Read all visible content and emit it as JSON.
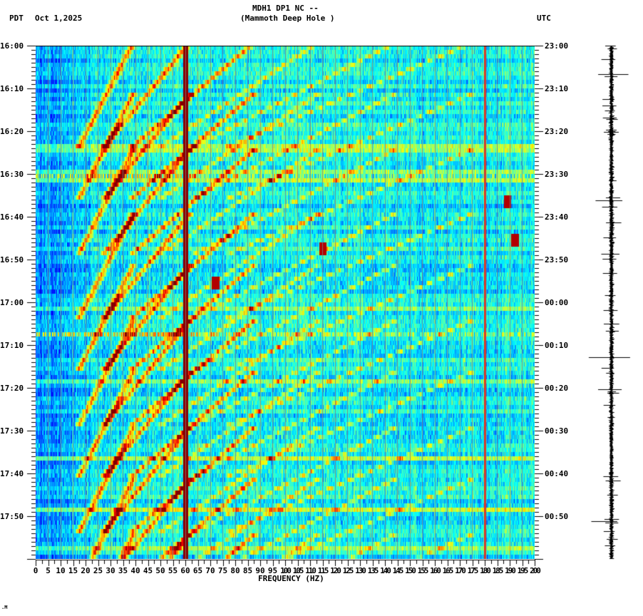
{
  "header": {
    "left_tz": "PDT",
    "date": "Oct 1,2025",
    "title_line1": "MDH1 DP1 NC --",
    "title_line2": "(Mammoth Deep Hole )",
    "right_tz": "UTC"
  },
  "footer_mark": ".M",
  "chart_data": {
    "type": "heatmap",
    "title": "MDH1 DP1 NC -- (Mammoth Deep Hole ) spectrogram",
    "xlabel": "FREQUENCY (HZ)",
    "ylabel_left": "PDT",
    "ylabel_right": "UTC",
    "xlim": [
      0,
      200
    ],
    "x_ticks": [
      "0",
      "5",
      "10",
      "15",
      "20",
      "25",
      "30",
      "35",
      "40",
      "45",
      "50",
      "55",
      "60",
      "65",
      "70",
      "75",
      "80",
      "85",
      "90",
      "95",
      "100",
      "105",
      "110",
      "115",
      "120",
      "125",
      "130",
      "135",
      "140",
      "145",
      "150",
      "155",
      "160",
      "165",
      "170",
      "175",
      "180",
      "185",
      "190",
      "195",
      "200"
    ],
    "y_ticks_left": [
      "16:00",
      "16:10",
      "16:20",
      "16:30",
      "16:40",
      "16:50",
      "17:00",
      "17:10",
      "17:20",
      "17:30",
      "17:40",
      "17:50"
    ],
    "y_ticks_right": [
      "23:00",
      "23:10",
      "23:20",
      "23:30",
      "23:40",
      "23:50",
      "00:00",
      "00:10",
      "00:20",
      "00:30",
      "00:40",
      "00:50"
    ],
    "time_range_pdt": [
      "16:00",
      "18:00"
    ],
    "colormap": [
      "#00007f",
      "#0000ff",
      "#0080ff",
      "#00ffff",
      "#80ff80",
      "#ffff00",
      "#ff8000",
      "#ff0000",
      "#7f0000"
    ],
    "persistent_lines_hz": [
      60,
      180
    ],
    "strong_horizontal_events_pdt": [
      "16:30",
      "17:07"
    ],
    "chirp_sweeps_start_pdt": [
      "16:00",
      "16:12",
      "16:25",
      "16:40",
      "16:52",
      "17:05",
      "17:17",
      "17:30",
      "17:42",
      "17:55"
    ],
    "spot_events": [
      {
        "hz": 189,
        "time": "16:36"
      },
      {
        "hz": 192,
        "time": "16:45"
      },
      {
        "hz": 115,
        "time": "16:47"
      },
      {
        "hz": 72,
        "time": "16:55"
      }
    ]
  },
  "seismogram": {
    "label": "waveform trace"
  }
}
